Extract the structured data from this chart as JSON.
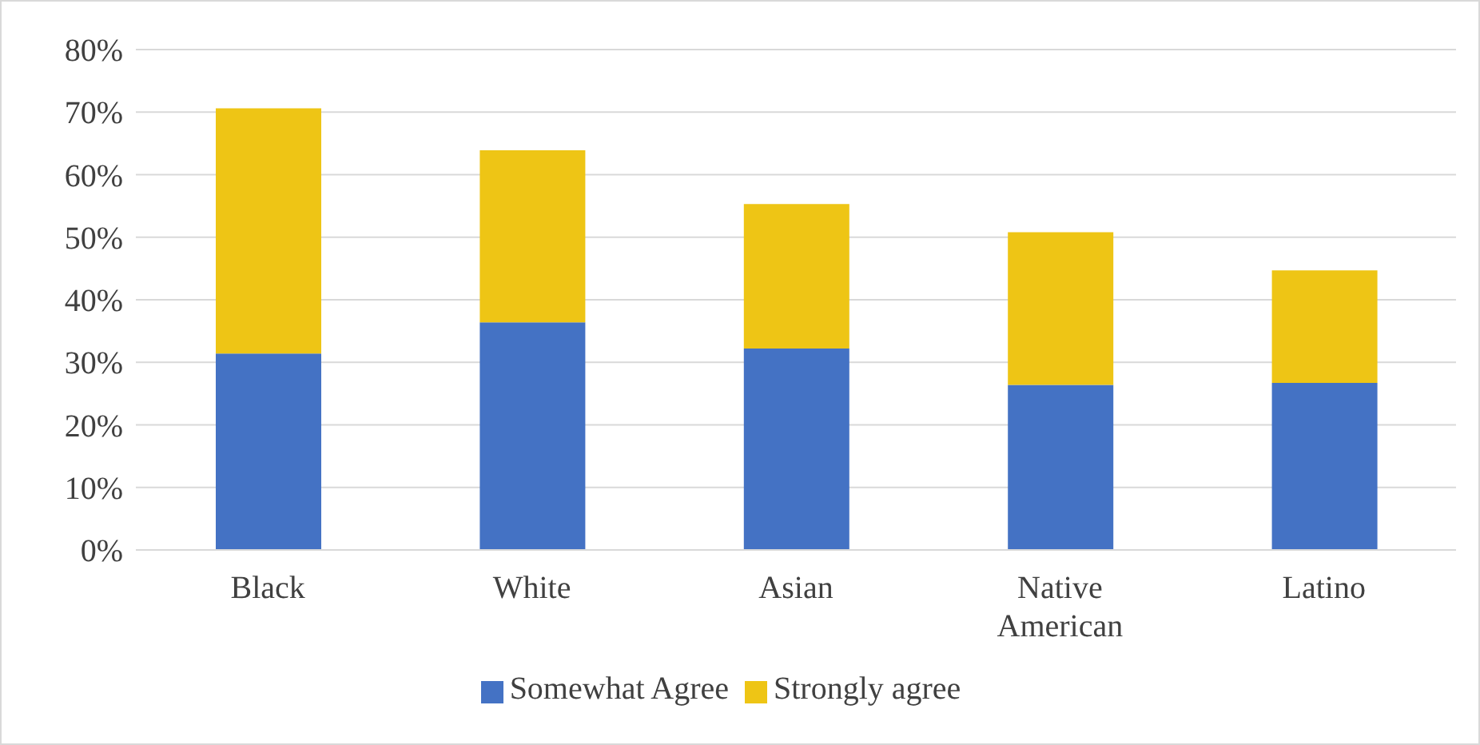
{
  "chart_data": {
    "type": "bar",
    "stacked": true,
    "categories": [
      "Black",
      "White",
      "Asian",
      "Native American",
      "Latino"
    ],
    "series": [
      {
        "name": "Somewhat Agree",
        "color": "#4472c4",
        "values": [
          31.4,
          36.4,
          32.2,
          26.4,
          26.7
        ]
      },
      {
        "name": "Strongly agree",
        "color": "#eec515",
        "values": [
          39.2,
          27.5,
          23.1,
          24.4,
          18.0
        ]
      }
    ],
    "ylim": [
      0,
      80
    ],
    "yticks": [
      {
        "value": 0,
        "label": "0%"
      },
      {
        "value": 10,
        "label": "10%"
      },
      {
        "value": 20,
        "label": "20%"
      },
      {
        "value": 30,
        "label": "30%"
      },
      {
        "value": 40,
        "label": "40%"
      },
      {
        "value": 50,
        "label": "50%"
      },
      {
        "value": 60,
        "label": "60%"
      },
      {
        "value": 70,
        "label": "70%"
      },
      {
        "value": 80,
        "label": "80%"
      }
    ],
    "grid": "y",
    "legend": "bottom"
  }
}
